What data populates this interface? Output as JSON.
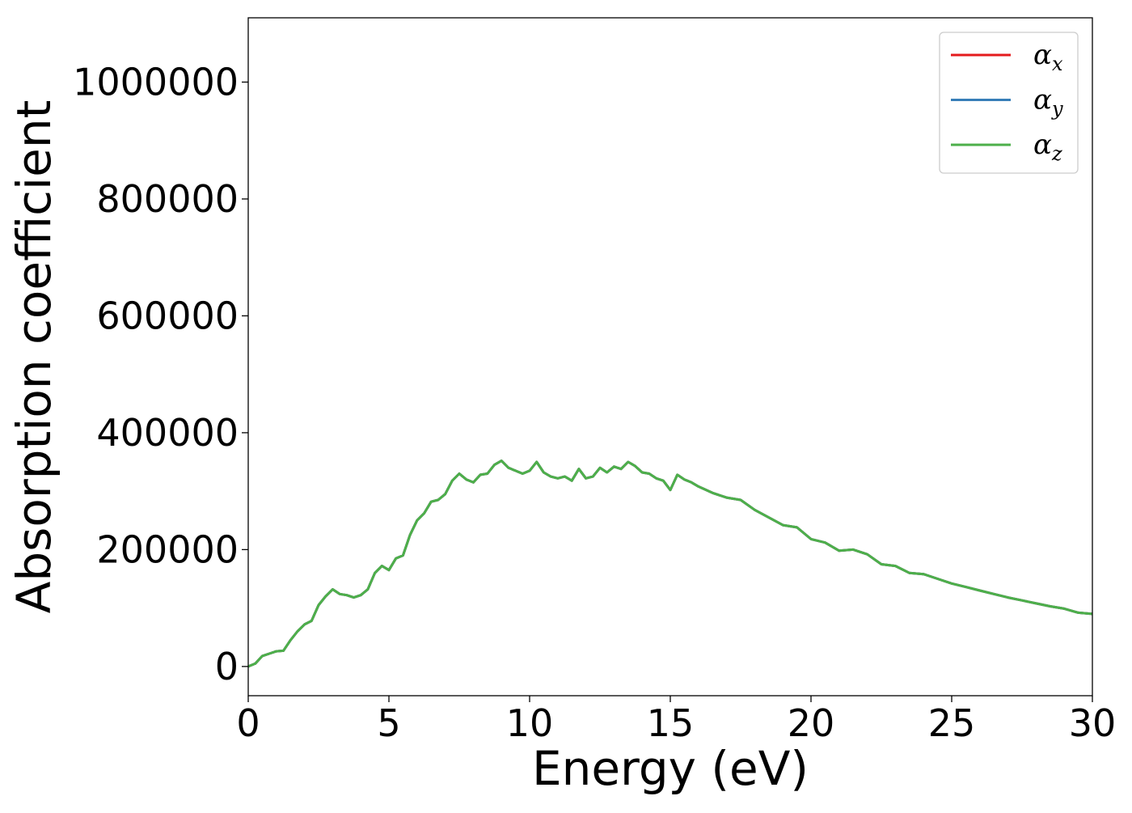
{
  "chart_data": {
    "type": "line",
    "title": "",
    "xlabel": "Energy (eV)",
    "ylabel": "Absorption coefficient",
    "xlim": [
      0,
      30
    ],
    "ylim": [
      -50000,
      1110000
    ],
    "xticks": [
      0,
      5,
      10,
      15,
      20,
      25,
      30
    ],
    "yticks": [
      0,
      200000,
      400000,
      600000,
      800000,
      1000000
    ],
    "xtick_labels": [
      "0",
      "5",
      "10",
      "15",
      "20",
      "25",
      "30"
    ],
    "ytick_labels": [
      "0",
      "200000",
      "400000",
      "600000",
      "800000",
      "1000000"
    ],
    "grid": false,
    "legend": {
      "placement": "top-right"
    },
    "x": [
      0,
      0.25,
      0.5,
      0.75,
      1,
      1.25,
      1.5,
      1.75,
      2,
      2.25,
      2.5,
      2.75,
      3,
      3.25,
      3.5,
      3.75,
      4,
      4.25,
      4.5,
      4.75,
      5,
      5.25,
      5.5,
      5.75,
      6,
      6.25,
      6.5,
      6.75,
      7,
      7.25,
      7.5,
      7.75,
      8,
      8.25,
      8.5,
      8.75,
      9,
      9.25,
      9.5,
      9.75,
      10,
      10.25,
      10.5,
      10.75,
      11,
      11.25,
      11.5,
      11.75,
      12,
      12.25,
      12.5,
      12.75,
      13,
      13.25,
      13.5,
      13.75,
      14,
      14.25,
      14.5,
      14.75,
      15,
      15.25,
      15.5,
      15.75,
      16,
      16.5,
      17,
      17.5,
      18,
      18.5,
      19,
      19.5,
      20,
      20.5,
      21,
      21.5,
      22,
      22.5,
      23,
      23.5,
      24,
      24.5,
      25,
      25.5,
      26,
      26.5,
      27,
      27.5,
      28,
      28.5,
      29,
      29.5,
      30
    ],
    "series": [
      {
        "name": "αx",
        "color": "#e41a1c",
        "values": [
          0,
          5000,
          18000,
          22000,
          26000,
          27000,
          45000,
          60000,
          72000,
          78000,
          105000,
          120000,
          132000,
          124000,
          122000,
          118000,
          122000,
          132000,
          160000,
          172000,
          165000,
          185000,
          190000,
          225000,
          250000,
          262000,
          282000,
          285000,
          295000,
          318000,
          330000,
          320000,
          315000,
          328000,
          330000,
          345000,
          352000,
          340000,
          335000,
          330000,
          335000,
          350000,
          332000,
          325000,
          322000,
          325000,
          318000,
          338000,
          322000,
          325000,
          340000,
          332000,
          342000,
          338000,
          350000,
          343000,
          332000,
          330000,
          322000,
          318000,
          302000,
          328000,
          320000,
          315000,
          308000,
          297000,
          289000,
          285000,
          268000,
          255000,
          242000,
          238000,
          218000,
          212000,
          198000,
          200000,
          192000,
          175000,
          172000,
          160000,
          158000,
          150000,
          142000,
          136000,
          130000,
          124000,
          118000,
          113000,
          108000,
          103000,
          99000,
          92000,
          90000
        ]
      },
      {
        "name": "αy",
        "color": "#377eb8",
        "values": [
          0,
          5000,
          18000,
          22000,
          26000,
          27000,
          45000,
          60000,
          72000,
          78000,
          105000,
          120000,
          132000,
          124000,
          122000,
          118000,
          122000,
          132000,
          160000,
          172000,
          165000,
          185000,
          190000,
          225000,
          250000,
          262000,
          282000,
          285000,
          295000,
          318000,
          330000,
          320000,
          315000,
          328000,
          330000,
          345000,
          352000,
          340000,
          335000,
          330000,
          335000,
          350000,
          332000,
          325000,
          322000,
          325000,
          318000,
          338000,
          322000,
          325000,
          340000,
          332000,
          342000,
          338000,
          350000,
          343000,
          332000,
          330000,
          322000,
          318000,
          302000,
          328000,
          320000,
          315000,
          308000,
          297000,
          289000,
          285000,
          268000,
          255000,
          242000,
          238000,
          218000,
          212000,
          198000,
          200000,
          192000,
          175000,
          172000,
          160000,
          158000,
          150000,
          142000,
          136000,
          130000,
          124000,
          118000,
          113000,
          108000,
          103000,
          99000,
          92000,
          90000
        ]
      },
      {
        "name": "αz",
        "color": "#4daf4a",
        "values": [
          0,
          5000,
          18000,
          22000,
          26000,
          27000,
          45000,
          60000,
          72000,
          78000,
          105000,
          120000,
          132000,
          124000,
          122000,
          118000,
          122000,
          132000,
          160000,
          172000,
          165000,
          185000,
          190000,
          225000,
          250000,
          262000,
          282000,
          285000,
          295000,
          318000,
          330000,
          320000,
          315000,
          328000,
          330000,
          345000,
          352000,
          340000,
          335000,
          330000,
          335000,
          350000,
          332000,
          325000,
          322000,
          325000,
          318000,
          338000,
          322000,
          325000,
          340000,
          332000,
          342000,
          338000,
          350000,
          343000,
          332000,
          330000,
          322000,
          318000,
          302000,
          328000,
          320000,
          315000,
          308000,
          297000,
          289000,
          285000,
          268000,
          255000,
          242000,
          238000,
          218000,
          212000,
          198000,
          200000,
          192000,
          175000,
          172000,
          160000,
          158000,
          150000,
          142000,
          136000,
          130000,
          124000,
          118000,
          113000,
          108000,
          103000,
          99000,
          92000,
          90000
        ]
      }
    ],
    "legend_entries": [
      {
        "symbol": "α",
        "subscript": "x",
        "color": "#e41a1c"
      },
      {
        "symbol": "α",
        "subscript": "y",
        "color": "#377eb8"
      },
      {
        "symbol": "α",
        "subscript": "z",
        "color": "#4daf4a"
      }
    ]
  }
}
